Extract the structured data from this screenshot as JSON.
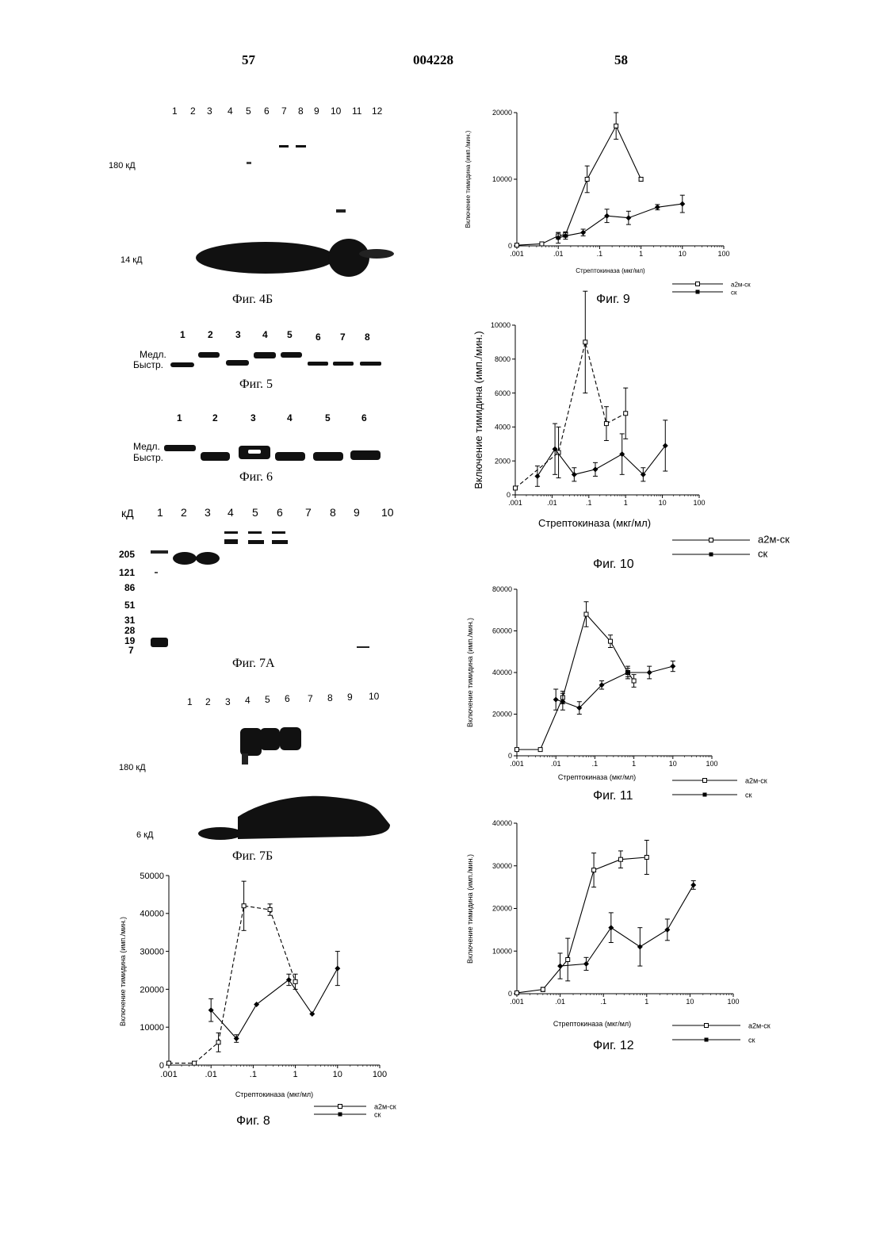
{
  "header": {
    "left_page": "57",
    "doc_number": "004228",
    "right_page": "58"
  },
  "blots": {
    "fig4b": {
      "caption": "Фиг. 4Б",
      "lanes": [
        "1",
        "2",
        "3",
        "4",
        "5",
        "6",
        "7",
        "8",
        "9",
        "10",
        "11",
        "12"
      ],
      "markers": [
        "180 кД",
        "14 кД"
      ]
    },
    "fig5": {
      "caption": "Фиг. 5",
      "lanes": [
        "1",
        "2",
        "3",
        "4",
        "5",
        "6",
        "7",
        "8"
      ],
      "bands": [
        "Медл.",
        "Быстр."
      ]
    },
    "fig6": {
      "caption": "Фиг. 6",
      "lanes": [
        "1",
        "2",
        "3",
        "4",
        "5",
        "6"
      ],
      "bands": [
        "Медл.",
        "Быстр."
      ]
    },
    "fig7a": {
      "caption": "Фиг. 7А",
      "unit": "кД",
      "lanes": [
        "1",
        "2",
        "3",
        "4",
        "5",
        "6",
        "7",
        "8",
        "9",
        "10"
      ],
      "markers": [
        "205",
        "121",
        "86",
        "51",
        "31",
        "28",
        "19",
        "7"
      ]
    },
    "fig7b": {
      "caption": "Фиг. 7Б",
      "lanes": [
        "1",
        "2",
        "3",
        "4",
        "5",
        "6",
        "7",
        "8",
        "9",
        "10"
      ],
      "markers": [
        "180 кД",
        "6 кД"
      ]
    }
  },
  "chart_data": [
    {
      "id": "fig8",
      "type": "line",
      "caption": "Фиг. 8",
      "xlabel": "Стрептокиназа (мкг/мл)",
      "ylabel": "Включение тимидина (имп./мин.)",
      "x_scale": "log",
      "xlim": [
        0.001,
        100
      ],
      "ylim": [
        0,
        50000
      ],
      "x_ticks": [
        ".001",
        ".01",
        ".1",
        "1",
        "10",
        "100"
      ],
      "y_ticks": [
        "0",
        "10000",
        "20000",
        "30000",
        "40000",
        "50000"
      ],
      "series": [
        {
          "name": "а2м-ск",
          "marker": "open-square",
          "dashed": true,
          "x": [
            0.001,
            0.004,
            0.015,
            0.06,
            0.25,
            1
          ],
          "y": [
            500,
            500,
            6000,
            42000,
            41000,
            22000
          ],
          "err": [
            0,
            0,
            2500,
            6500,
            1500,
            2000
          ]
        },
        {
          "name": "ск",
          "marker": "filled-diamond",
          "dashed": false,
          "x": [
            0.01,
            0.04,
            0.12,
            0.7,
            2.5,
            10
          ],
          "y": [
            14500,
            7000,
            16000,
            22500,
            13500,
            25500
          ],
          "err": [
            3000,
            1000,
            0,
            1500,
            0,
            4500
          ]
        }
      ]
    },
    {
      "id": "fig9",
      "type": "line",
      "caption": "Фиг. 9",
      "xlabel": "Стрептокиназа (мкг/мл)",
      "ylabel": "Включение тимидина (имп./мин.)",
      "x_scale": "log",
      "xlim": [
        0.001,
        100
      ],
      "ylim": [
        0,
        20000
      ],
      "x_ticks": [
        ".001",
        ".01",
        ".1",
        "1",
        "10",
        "100"
      ],
      "y_ticks": [
        "0",
        "10000",
        "20000"
      ],
      "series": [
        {
          "name": "а2м-ск",
          "marker": "open-square",
          "dashed": false,
          "x": [
            0.001,
            0.004,
            0.01,
            0.015,
            0.05,
            0.25,
            1
          ],
          "y": [
            100,
            300,
            1500,
            1700,
            10000,
            18000,
            10000
          ],
          "err": [
            0,
            0,
            500,
            400,
            2000,
            2000,
            300
          ]
        },
        {
          "name": "ск",
          "marker": "filled-diamond",
          "dashed": false,
          "x": [
            0.01,
            0.015,
            0.04,
            0.15,
            0.5,
            2.5,
            10
          ],
          "y": [
            1200,
            1500,
            2000,
            4500,
            4200,
            5800,
            6300
          ],
          "err": [
            800,
            500,
            500,
            1000,
            1000,
            400,
            1300
          ]
        }
      ]
    },
    {
      "id": "fig10",
      "type": "line",
      "caption": "Фиг. 10",
      "xlabel": "Стрептокиназа (мкг/мл)",
      "ylabel": "Включение тимидина (имп./мин.)",
      "x_scale": "log",
      "xlim": [
        0.001,
        100
      ],
      "ylim": [
        0,
        10000
      ],
      "x_ticks": [
        ".001",
        ".01",
        ".1",
        "1",
        "10",
        "100"
      ],
      "y_ticks": [
        "0",
        "2000",
        "4000",
        "6000",
        "8000",
        "10000"
      ],
      "series": [
        {
          "name": "а2м-ск",
          "marker": "open-square",
          "dashed": true,
          "x": [
            0.001,
            0.015,
            0.08,
            0.3,
            1
          ],
          "y": [
            400,
            2500,
            9000,
            4200,
            4800
          ],
          "err": [
            0,
            1500,
            3000,
            1000,
            1500
          ]
        },
        {
          "name": "ск",
          "marker": "filled-diamond",
          "dashed": false,
          "x": [
            0.004,
            0.012,
            0.04,
            0.15,
            0.8,
            3,
            12
          ],
          "y": [
            1100,
            2700,
            1200,
            1500,
            2400,
            1200,
            2900
          ],
          "err": [
            600,
            1500,
            400,
            400,
            1200,
            400,
            1500
          ]
        }
      ]
    },
    {
      "id": "fig11",
      "type": "line",
      "caption": "Фиг. 11",
      "xlabel": "Стрептокиназа (мкг/мл)",
      "ylabel": "Включение тимидина (имп./мин.)",
      "x_scale": "log",
      "xlim": [
        0.001,
        100
      ],
      "ylim": [
        0,
        80000
      ],
      "x_ticks": [
        ".001",
        ".01",
        ".1",
        "1",
        "10",
        "100"
      ],
      "y_ticks": [
        "0",
        "20000",
        "40000",
        "60000",
        "80000"
      ],
      "series": [
        {
          "name": "а2м-ск",
          "marker": "open-square",
          "dashed": false,
          "x": [
            0.001,
            0.004,
            0.015,
            0.06,
            0.25,
            0.7,
            1
          ],
          "y": [
            3000,
            3000,
            28000,
            68000,
            55000,
            40000,
            36000
          ],
          "err": [
            0,
            0,
            3000,
            6000,
            3000,
            2000,
            3000
          ]
        },
        {
          "name": "ск",
          "marker": "filled-diamond",
          "dashed": false,
          "x": [
            0.01,
            0.015,
            0.04,
            0.15,
            0.7,
            2.5,
            10
          ],
          "y": [
            27000,
            26000,
            23000,
            34000,
            40000,
            40000,
            43000
          ],
          "err": [
            5000,
            4000,
            3000,
            2000,
            3000,
            3000,
            2500
          ]
        }
      ]
    },
    {
      "id": "fig12",
      "type": "line",
      "caption": "Фиг. 12",
      "xlabel": "Стрептокиназа (мкг/мл)",
      "ylabel": "Включение тимидина (имп./мин.)",
      "x_scale": "log",
      "xlim": [
        0.001,
        100
      ],
      "ylim": [
        0,
        40000
      ],
      "x_ticks": [
        ".001",
        ".01",
        ".1",
        "1",
        "10",
        "100"
      ],
      "y_ticks": [
        "0",
        "10000",
        "20000",
        "30000",
        "40000"
      ],
      "series": [
        {
          "name": "а2м-ск",
          "marker": "open-square",
          "dashed": false,
          "x": [
            0.001,
            0.004,
            0.015,
            0.06,
            0.25,
            1
          ],
          "y": [
            200,
            1000,
            8000,
            29000,
            31500,
            32000
          ],
          "err": [
            0,
            500,
            5000,
            4000,
            2000,
            4000
          ]
        },
        {
          "name": "ск",
          "marker": "filled-diamond",
          "dashed": false,
          "x": [
            0.01,
            0.04,
            0.15,
            0.7,
            3,
            12
          ],
          "y": [
            6500,
            7000,
            15500,
            11000,
            15000,
            25500
          ],
          "err": [
            3000,
            1500,
            3500,
            4500,
            2500,
            1000
          ]
        }
      ]
    }
  ]
}
